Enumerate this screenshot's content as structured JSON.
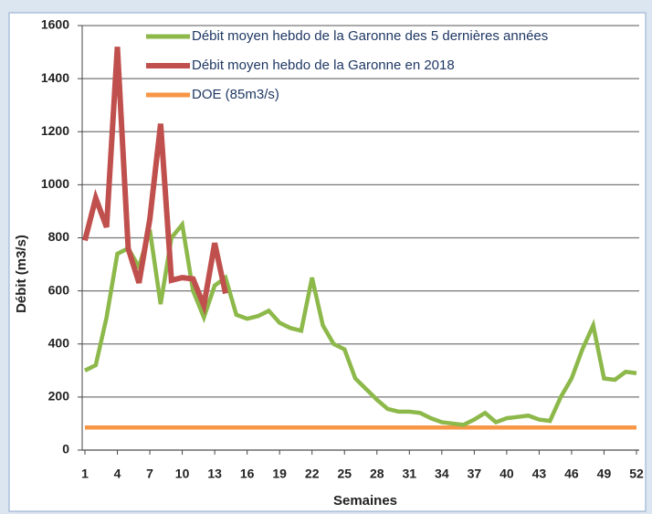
{
  "chart_data": {
    "type": "line",
    "x_label": "Semaines",
    "y_label": "Débit (m3/s)",
    "x": [
      1,
      2,
      3,
      4,
      5,
      6,
      7,
      8,
      9,
      10,
      11,
      12,
      13,
      14,
      15,
      16,
      17,
      18,
      19,
      20,
      21,
      22,
      23,
      24,
      25,
      26,
      27,
      28,
      29,
      30,
      31,
      32,
      33,
      34,
      35,
      36,
      37,
      38,
      39,
      40,
      41,
      42,
      43,
      44,
      45,
      46,
      47,
      48,
      49,
      50,
      51,
      52
    ],
    "series": [
      {
        "name": "Débit moyen hebdo de la Garonne des 5 dernières années",
        "color": "#8db84a",
        "values": [
          300,
          320,
          500,
          740,
          760,
          690,
          830,
          550,
          800,
          850,
          600,
          500,
          620,
          650,
          510,
          495,
          505,
          525,
          480,
          460,
          450,
          650,
          470,
          400,
          380,
          270,
          230,
          190,
          155,
          145,
          145,
          140,
          120,
          105,
          100,
          95,
          115,
          140,
          105,
          120,
          125,
          130,
          115,
          110,
          200,
          270,
          380,
          470,
          270,
          265,
          295,
          290
        ]
      },
      {
        "name": "Débit moyen hebdo de la Garonne en 2018",
        "color": "#c0504d",
        "values": [
          790,
          950,
          840,
          1520,
          760,
          630,
          870,
          1230,
          640,
          650,
          645,
          545,
          780,
          590,
          null,
          null,
          null,
          null,
          null,
          null,
          null,
          null,
          null,
          null,
          null,
          null,
          null,
          null,
          null,
          null,
          null,
          null,
          null,
          null,
          null,
          null,
          null,
          null,
          null,
          null,
          null,
          null,
          null,
          null,
          null,
          null,
          null,
          null,
          null,
          null,
          null,
          null
        ]
      },
      {
        "name": "DOE (85m3/s)",
        "color": "#f79646",
        "values": [
          85,
          85,
          85,
          85,
          85,
          85,
          85,
          85,
          85,
          85,
          85,
          85,
          85,
          85,
          85,
          85,
          85,
          85,
          85,
          85,
          85,
          85,
          85,
          85,
          85,
          85,
          85,
          85,
          85,
          85,
          85,
          85,
          85,
          85,
          85,
          85,
          85,
          85,
          85,
          85,
          85,
          85,
          85,
          85,
          85,
          85,
          85,
          85,
          85,
          85,
          85,
          85
        ]
      }
    ],
    "xlim": [
      1,
      52
    ],
    "xticks": [
      1,
      4,
      7,
      10,
      13,
      16,
      19,
      22,
      25,
      28,
      31,
      34,
      37,
      40,
      43,
      46,
      49,
      52
    ],
    "ylim": [
      0,
      1600
    ],
    "yticks": [
      0,
      200,
      400,
      600,
      800,
      1000,
      1200,
      1400,
      1600
    ],
    "grid": true,
    "legend": "top-left"
  }
}
